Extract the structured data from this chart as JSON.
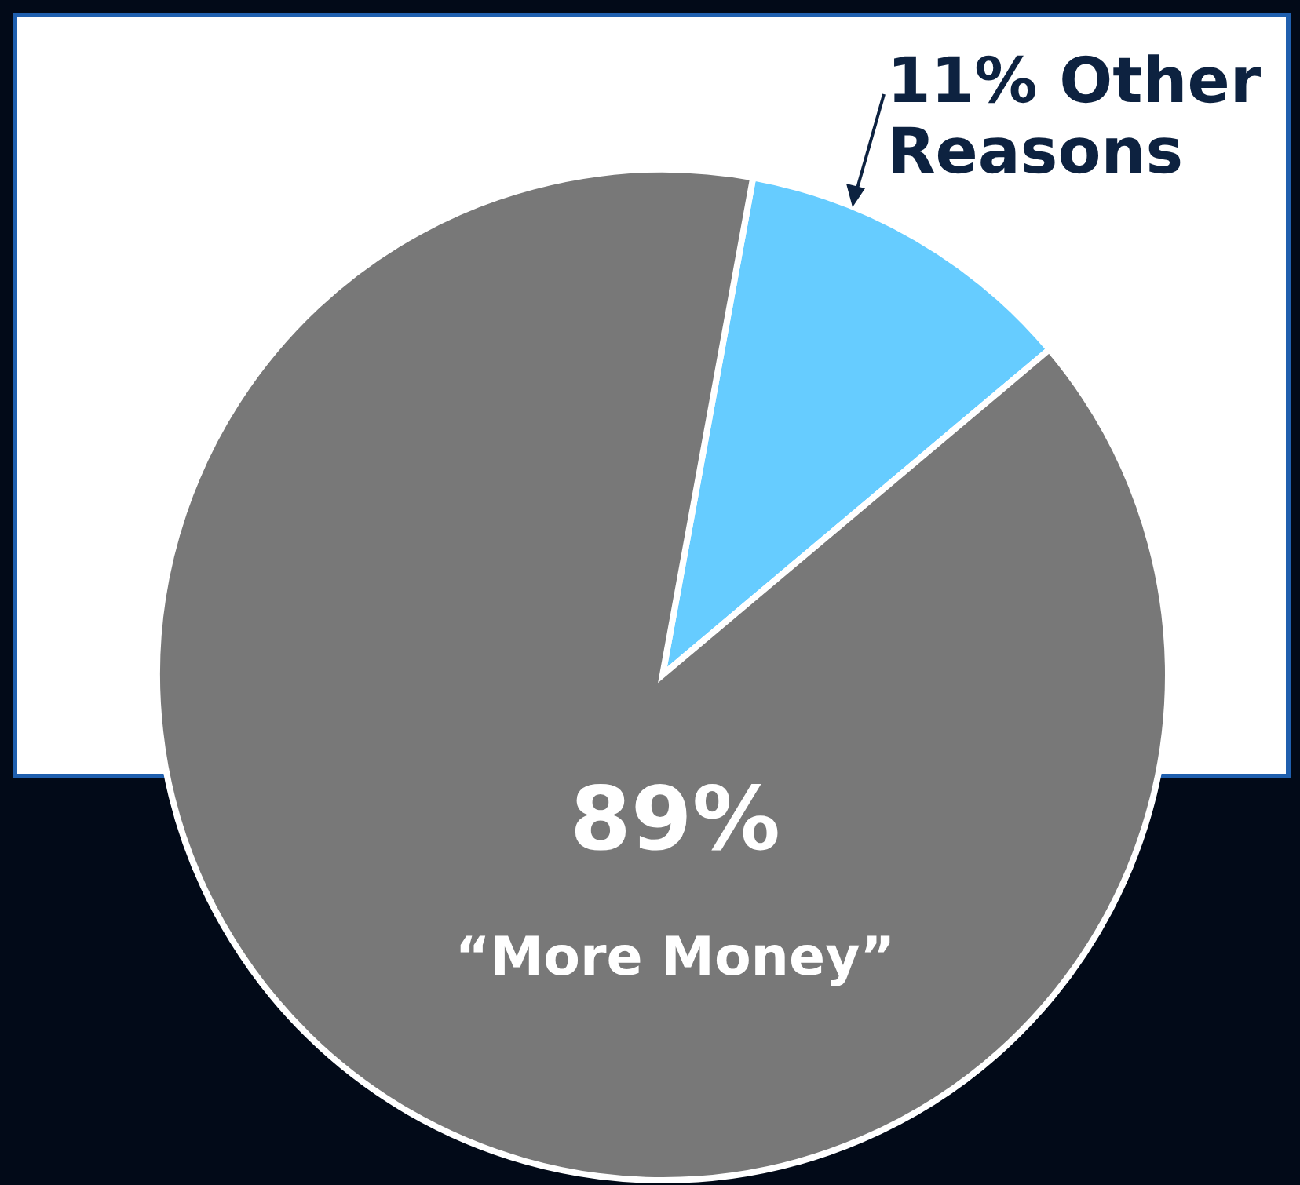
{
  "chart_data": {
    "type": "pie",
    "categories": [
      "Other Reasons",
      "“More Money”"
    ],
    "values": [
      11,
      89
    ],
    "value_labels": [
      "11%",
      "89%"
    ],
    "colors": [
      "#66ccff",
      "#787878"
    ]
  }
}
